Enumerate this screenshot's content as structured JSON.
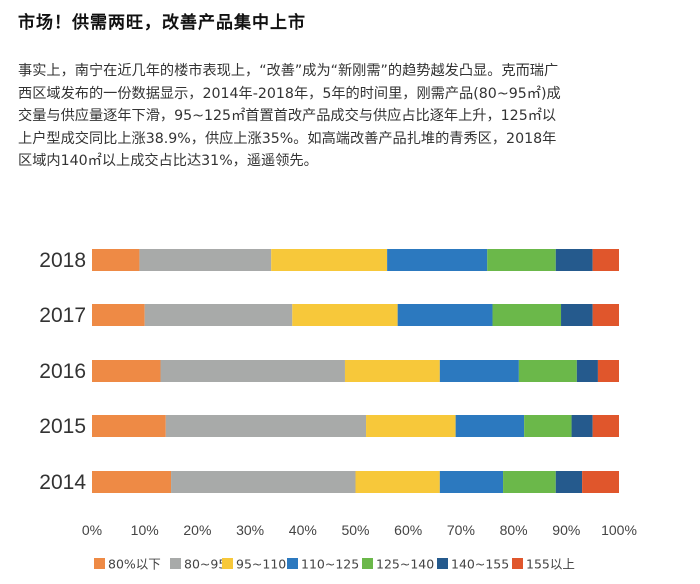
{
  "heading": "市场！供需两旺，改善产品集中上市",
  "paragraph_lines": [
    "事实上，南宁在近几年的楼市表现上，“改善”成为“新刚需”的趋势越发凸显。克而瑞广",
    "西区域发布的一份数据显示，2014年-2018年，5年的时间里，刚需产品(80~95㎡)成",
    "交量与供应量逐年下滑，95~125㎡首置首改产品成交与供应占比逐年上升，125㎡以",
    "上户型成交同比上涨38.9%，供应上涨35%。如高端改善产品扎堆的青秀区，2018年",
    "区域内140㎡以上成交占比达31%，遥遥领先。"
  ],
  "chart_data": {
    "type": "bar",
    "orientation": "horizontal",
    "stacked": true,
    "categories": [
      "2018",
      "2017",
      "2016",
      "2015",
      "2014"
    ],
    "x_ticks": [
      "0%",
      "10%",
      "20%",
      "30%",
      "40%",
      "50%",
      "60%",
      "70%",
      "80%",
      "90%",
      "100%"
    ],
    "xlim": [
      0,
      100
    ],
    "grid": false,
    "legend_position": "bottom",
    "series": [
      {
        "name": "80%以下",
        "color": "#ee8a45",
        "values": [
          9,
          10,
          13,
          14,
          15
        ]
      },
      {
        "name": "80~95",
        "color": "#a8aaa9",
        "values": [
          25,
          28,
          35,
          38,
          35
        ]
      },
      {
        "name": "95~110",
        "color": "#f7c83a",
        "values": [
          22,
          20,
          18,
          17,
          16
        ]
      },
      {
        "name": "110~125",
        "color": "#2c79bf",
        "values": [
          19,
          18,
          15,
          13,
          12
        ]
      },
      {
        "name": "125~140",
        "color": "#6bb84a",
        "values": [
          13,
          13,
          11,
          9,
          10
        ]
      },
      {
        "name": "140~155",
        "color": "#255a8d",
        "values": [
          7,
          6,
          4,
          4,
          5
        ]
      },
      {
        "name": "155以上",
        "color": "#e0562c",
        "values": [
          5,
          5,
          4,
          5,
          7
        ]
      }
    ]
  }
}
